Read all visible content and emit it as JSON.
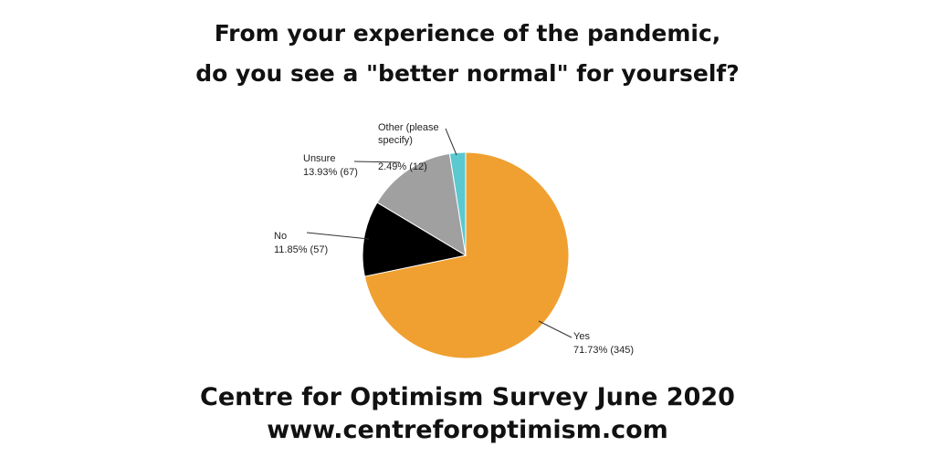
{
  "chart_data": {
    "type": "pie",
    "title": [
      "From your experience of the pandemic,",
      "do you see a \"better normal\" for yourself?"
    ],
    "categories": [
      "Yes",
      "No",
      "Unsure",
      "Other (please specify)"
    ],
    "values": [
      71.73,
      11.85,
      13.93,
      2.49
    ],
    "value_labels": [
      "71.73% (345)",
      "11.85% (57)",
      "13.93% (67)",
      "2.49% (12)"
    ],
    "colors": [
      "#f0a030",
      "#000000",
      "#a0a0a0",
      "#5cc8d0"
    ],
    "footer": [
      "Centre for Optimism Survey June 2020",
      "www.centreforoptimism.com"
    ]
  }
}
